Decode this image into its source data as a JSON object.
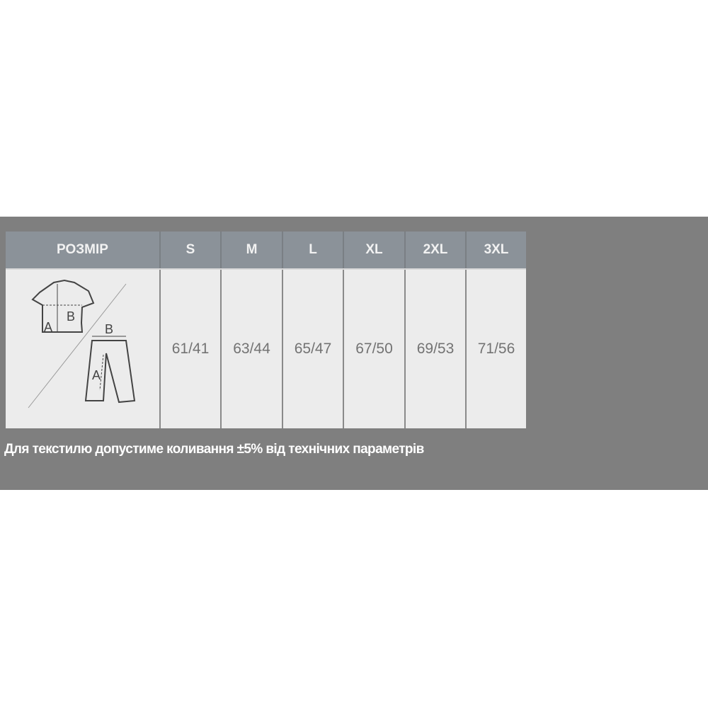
{
  "table": {
    "header_label": "РОЗМІР",
    "sizes": [
      "S",
      "M",
      "L",
      "XL",
      "2XL",
      "3XL"
    ],
    "values": [
      "61/41",
      "63/44",
      "65/47",
      "67/50",
      "69/53",
      "71/56"
    ],
    "diagram": {
      "icon": "shirt-and-pants-measurement-icon",
      "shirt_labels": [
        "A",
        "B"
      ],
      "pants_labels": [
        "A",
        "B"
      ]
    }
  },
  "note": "Для текстилю допустиме коливання ±5% від технічних параметрів"
}
